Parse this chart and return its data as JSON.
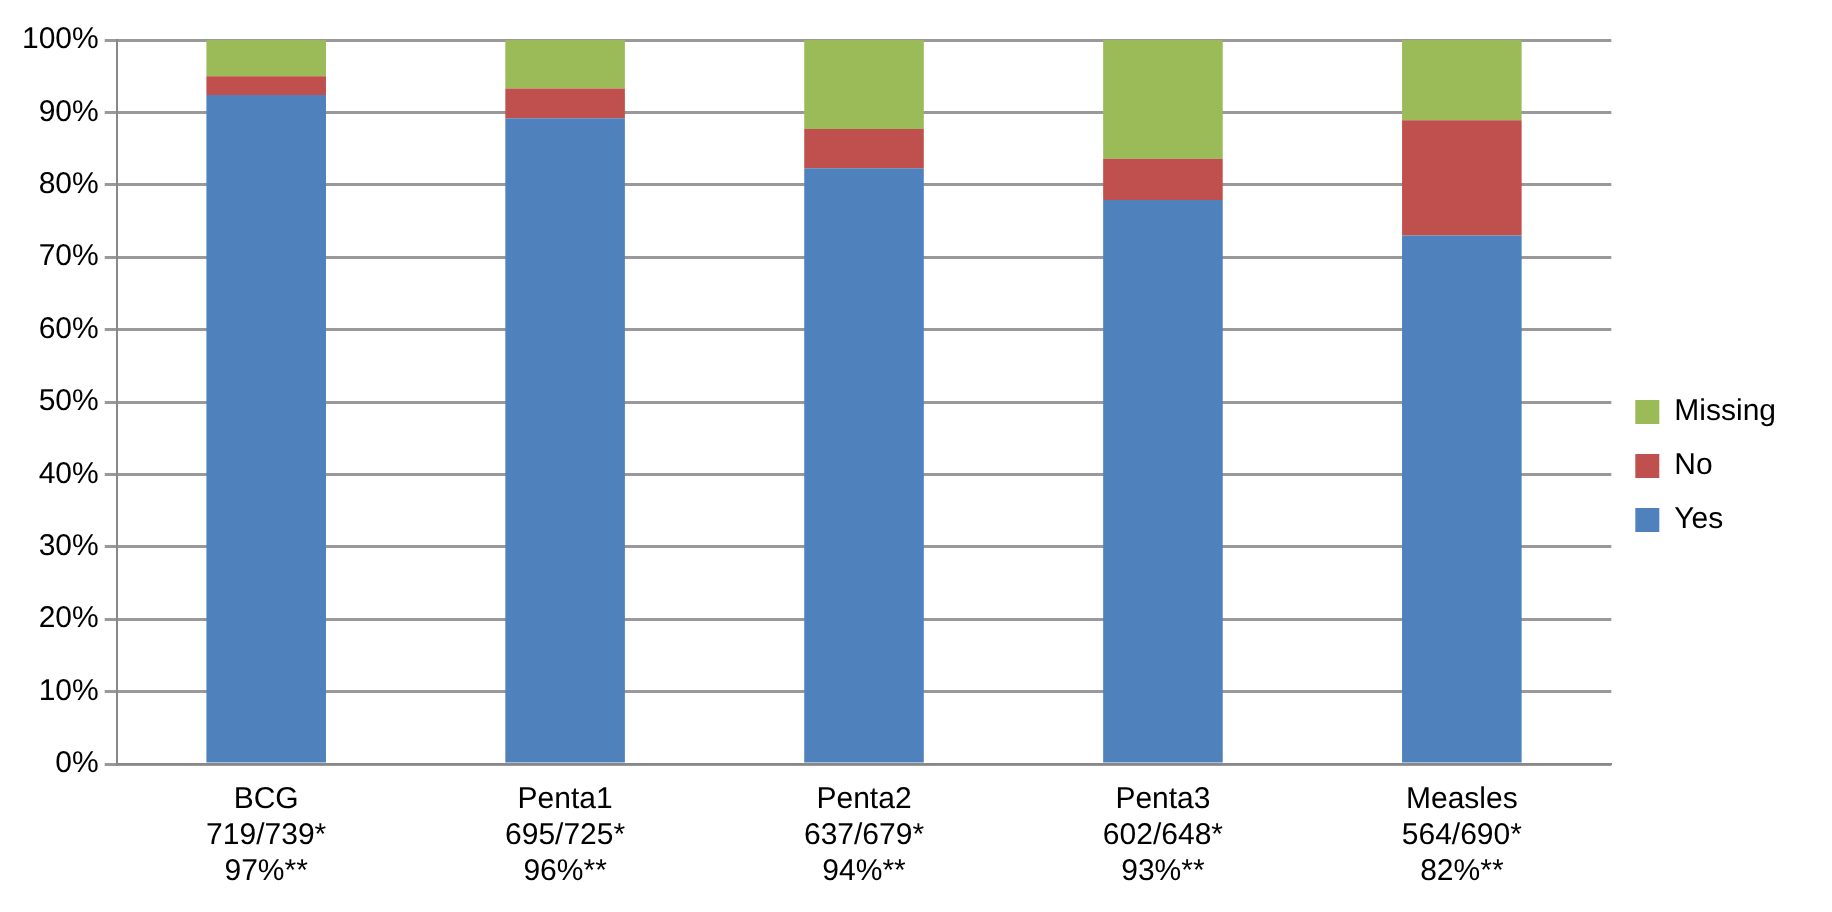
{
  "chart_data": {
    "type": "bar",
    "stacked": true,
    "categories": [
      "BCG\n719/739*\n97%**",
      "Penta1\n695/725*\n96%**",
      "Penta2\n637/679*\n94%**",
      "Penta3\n602/648*\n93%**",
      "Measles\n564/690*\n82%**"
    ],
    "series": [
      {
        "name": "Yes",
        "color": "#4f81bd",
        "values": [
          92.4,
          89.2,
          82.3,
          77.9,
          73.0
        ]
      },
      {
        "name": "No",
        "color": "#c0504d",
        "values": [
          2.6,
          4.1,
          5.4,
          5.7,
          15.9
        ]
      },
      {
        "name": "Missing",
        "color": "#9bbb59",
        "values": [
          5.0,
          6.7,
          12.3,
          16.4,
          11.1
        ]
      }
    ],
    "ylim": [
      0,
      100
    ],
    "yticks": [
      {
        "value": 0,
        "label": "0%"
      },
      {
        "value": 10,
        "label": "10%"
      },
      {
        "value": 20,
        "label": "20%"
      },
      {
        "value": 30,
        "label": "30%"
      },
      {
        "value": 40,
        "label": "40%"
      },
      {
        "value": 50,
        "label": "50%"
      },
      {
        "value": 60,
        "label": "60%"
      },
      {
        "value": 70,
        "label": "70%"
      },
      {
        "value": 80,
        "label": "80%"
      },
      {
        "value": 90,
        "label": "90%"
      },
      {
        "value": 100,
        "label": "100%"
      }
    ],
    "grid": "y",
    "legend": "right"
  }
}
